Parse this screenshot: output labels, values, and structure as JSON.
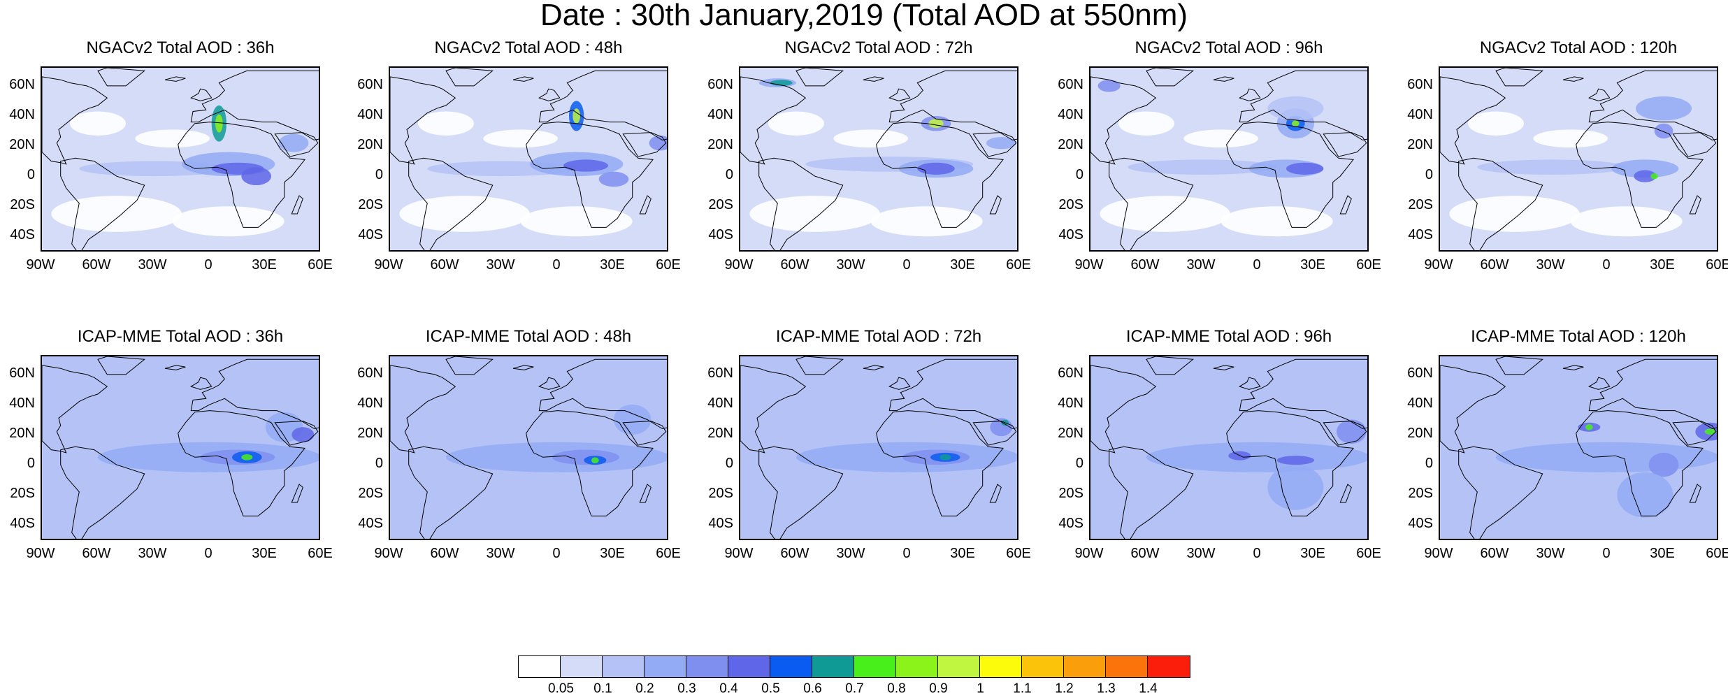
{
  "title": "Date : 30th January,2019 (Total AOD at 550nm)",
  "panels": [
    {
      "title": "NGACv2 Total AOD : 36h",
      "model": "NGACv2",
      "lead_hours": 36
    },
    {
      "title": "NGACv2 Total AOD : 48h",
      "model": "NGACv2",
      "lead_hours": 48
    },
    {
      "title": "NGACv2 Total AOD : 72h",
      "model": "NGACv2",
      "lead_hours": 72
    },
    {
      "title": "NGACv2 Total AOD : 96h",
      "model": "NGACv2",
      "lead_hours": 96
    },
    {
      "title": "NGACv2 Total AOD : 120h",
      "model": "NGACv2",
      "lead_hours": 120
    },
    {
      "title": "ICAP-MME Total AOD : 36h",
      "model": "ICAP-MME",
      "lead_hours": 36
    },
    {
      "title": "ICAP-MME Total AOD : 48h",
      "model": "ICAP-MME",
      "lead_hours": 48
    },
    {
      "title": "ICAP-MME Total AOD : 72h",
      "model": "ICAP-MME",
      "lead_hours": 72
    },
    {
      "title": "ICAP-MME Total AOD : 96h",
      "model": "ICAP-MME",
      "lead_hours": 96
    },
    {
      "title": "ICAP-MME Total AOD : 120h",
      "model": "ICAP-MME",
      "lead_hours": 120
    }
  ],
  "lat_labels": [
    "60N",
    "40N",
    "20N",
    "0",
    "20S",
    "40S"
  ],
  "lon_labels": [
    "90W",
    "60W",
    "30W",
    "0",
    "30E",
    "60E"
  ],
  "colorbar": {
    "colors": [
      "#ffffff",
      "#d4dcf8",
      "#b4c2f6",
      "#93aaf5",
      "#7f8ff0",
      "#5f66e8",
      "#0a5cf0",
      "#0f9a96",
      "#48ef1a",
      "#8cf31a",
      "#c0f540",
      "#fbfb0b",
      "#fbc30a",
      "#fb9e0b",
      "#fb740b",
      "#fb1e0b"
    ],
    "labels": [
      "0.05",
      "0.1",
      "0.2",
      "0.3",
      "0.4",
      "0.5",
      "0.6",
      "0.7",
      "0.8",
      "0.9",
      "1",
      "1.1",
      "1.2",
      "1.3",
      "1.4"
    ]
  }
}
